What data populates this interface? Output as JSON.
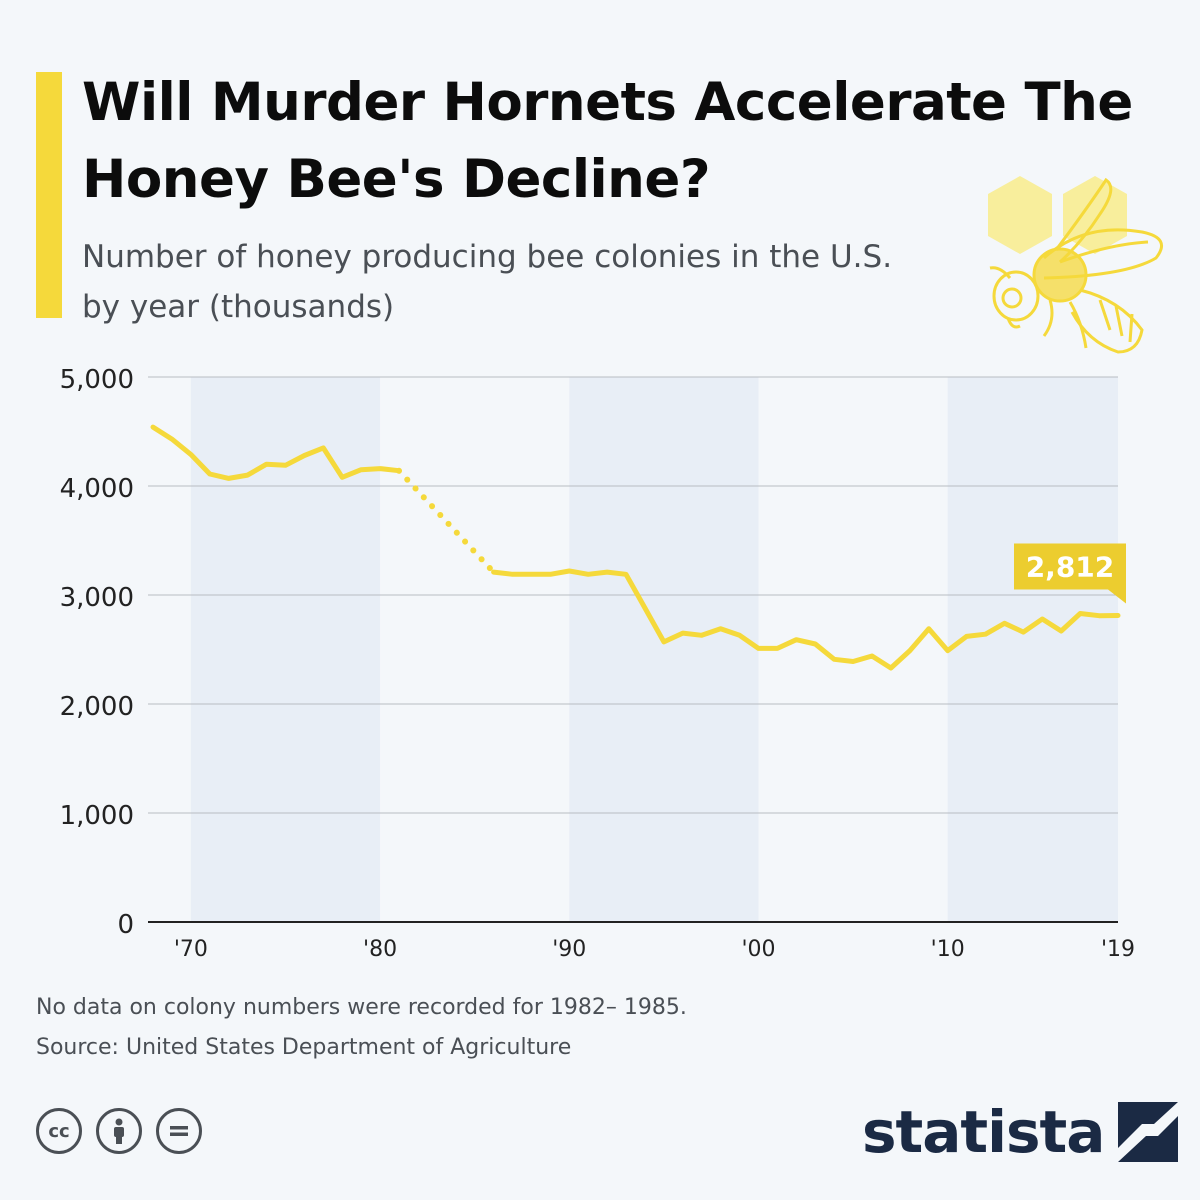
{
  "title": "Will Murder Hornets Accelerate The Honey Bee's Decline?",
  "subtitle": "Number of honey producing bee colonies in the U.S. by year (thousands)",
  "note": "No data on colony numbers were recorded for 1982– 1985.",
  "source": "Source: United States Department of Agriculture",
  "brand": "statista",
  "license_icons": [
    "cc-icon",
    "attribution-icon",
    "no-derivatives-icon"
  ],
  "colors": {
    "accent": "#f5d93b",
    "line": "#f5d93b",
    "brand": "#1b2a44",
    "band": "#e8eef6"
  },
  "chart_data": {
    "type": "line",
    "title": "",
    "xlabel": "",
    "ylabel": "",
    "xlim": [
      1968,
      2019
    ],
    "ylim": [
      0,
      5000
    ],
    "yticks": [
      0,
      1000,
      2000,
      3000,
      4000,
      5000
    ],
    "ytick_labels": [
      "0",
      "1,000",
      "2,000",
      "3,000",
      "4,000",
      "5,000"
    ],
    "xticks": [
      1970,
      1980,
      1990,
      2000,
      2010,
      2019
    ],
    "xtick_labels": [
      "'70",
      "'80",
      "'90",
      "'00",
      "'10",
      "'19"
    ],
    "grid": true,
    "legend": "none",
    "series": [
      {
        "x": [
          1968,
          1969,
          1970,
          1971,
          1972,
          1973,
          1974,
          1975,
          1976,
          1977,
          1978,
          1979,
          1980,
          1981
        ],
        "y": [
          4540,
          4430,
          4290,
          4110,
          4070,
          4100,
          4200,
          4190,
          4280,
          4350,
          4080,
          4150,
          4160,
          4140
        ]
      },
      {
        "x": [
          1986,
          1987,
          1988,
          1989,
          1990,
          1991,
          1992,
          1993,
          1994,
          1995,
          1996,
          1997,
          1998,
          1999,
          2000,
          2001,
          2002,
          2003,
          2004,
          2005,
          2006,
          2007,
          2008,
          2009,
          2010,
          2011,
          2012,
          2013,
          2014,
          2015,
          2016,
          2017,
          2018,
          2019
        ],
        "y": [
          3210,
          3190,
          3190,
          3190,
          3220,
          3190,
          3210,
          3190,
          2880,
          2570,
          2650,
          2630,
          2690,
          2630,
          2510,
          2510,
          2590,
          2550,
          2410,
          2390,
          2440,
          2330,
          2490,
          2690,
          2490,
          2620,
          2640,
          2740,
          2660,
          2780,
          2670,
          2830,
          2810,
          2812
        ]
      }
    ],
    "gap": {
      "x": [
        1981,
        1986
      ],
      "style": "dotted"
    },
    "callout": {
      "x": 2019,
      "y": 2812,
      "label": "2,812"
    },
    "bands": [
      [
        1970,
        1980
      ],
      [
        1990,
        2000
      ],
      [
        2010,
        2019
      ]
    ]
  }
}
